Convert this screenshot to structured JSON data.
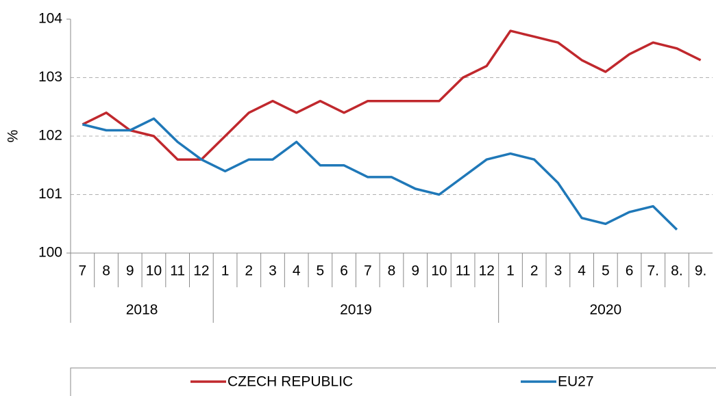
{
  "chart_data": {
    "type": "line",
    "y_label": "%",
    "year_groups": [
      {
        "name": "2018",
        "categories": [
          "7",
          "8",
          "9",
          "10",
          "11",
          "12"
        ]
      },
      {
        "name": "2019",
        "categories": [
          "1",
          "2",
          "3",
          "4",
          "5",
          "6",
          "7",
          "8",
          "9",
          "10",
          "11",
          "12"
        ]
      },
      {
        "name": "2020",
        "categories": [
          "1",
          "2",
          "3",
          "4",
          "5",
          "6",
          "7.",
          "8.",
          "9."
        ]
      }
    ],
    "series": [
      {
        "name": "CZECH REPUBLIC",
        "color": "#c0282d",
        "values": [
          102.2,
          102.4,
          102.1,
          102.0,
          101.6,
          101.6,
          102.0,
          102.4,
          102.6,
          102.4,
          102.6,
          102.4,
          102.6,
          102.6,
          102.6,
          102.6,
          103.0,
          103.2,
          103.8,
          103.7,
          103.6,
          103.3,
          103.1,
          103.4,
          103.6,
          103.5,
          103.3
        ]
      },
      {
        "name": "EU27",
        "color": "#1f78b8",
        "values": [
          102.2,
          102.1,
          102.1,
          102.3,
          101.9,
          101.6,
          101.4,
          101.6,
          101.6,
          101.9,
          101.5,
          101.5,
          101.3,
          101.3,
          101.1,
          101.0,
          101.3,
          101.6,
          101.7,
          101.6,
          101.2,
          100.6,
          100.5,
          100.7,
          100.8,
          100.4,
          null
        ]
      }
    ],
    "ylim": [
      100,
      104
    ],
    "yticks": [
      100,
      101,
      102,
      103,
      104
    ],
    "grid": true,
    "legend": "bottom"
  }
}
